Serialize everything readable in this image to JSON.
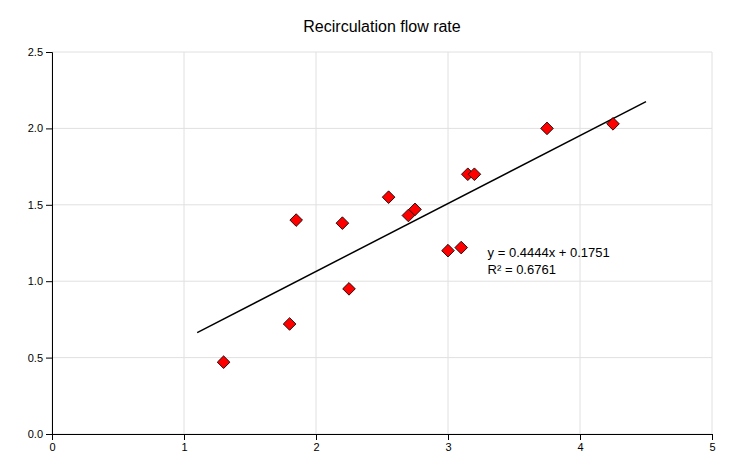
{
  "chart_data": {
    "type": "scatter",
    "title": "Recirculation flow rate",
    "series": [
      {
        "type": "scatter",
        "color": "#FF0000",
        "marker": "diamond",
        "x": [
          1.3,
          1.8,
          1.85,
          2.2,
          2.25,
          2.55,
          2.7,
          2.75,
          3.0,
          3.1,
          3.15,
          3.2,
          3.75,
          4.25
        ],
        "values": [
          0.47,
          0.72,
          1.4,
          1.38,
          0.95,
          1.55,
          1.43,
          1.47,
          1.2,
          1.22,
          1.7,
          1.7,
          2.0,
          2.03
        ]
      },
      {
        "type": "line",
        "color": "#000000",
        "line_style": "solid",
        "x": [
          1.1,
          4.5
        ],
        "values": [
          0.66394,
          2.1749
        ]
      }
    ],
    "annotations": [
      "y = 0.4444x + 0.1751",
      "R² = 0.6761"
    ],
    "xlim": [
      0,
      5
    ],
    "ylim": [
      0,
      2.5
    ],
    "xticks": [
      0,
      1,
      2,
      3,
      4,
      5
    ],
    "yticks": [
      {
        "value": 0,
        "label": "0.0"
      },
      0.5,
      {
        "value": 1,
        "label": "1.0"
      },
      1.5,
      {
        "value": 2,
        "label": "2.0"
      },
      2.5
    ],
    "grid": true
  }
}
